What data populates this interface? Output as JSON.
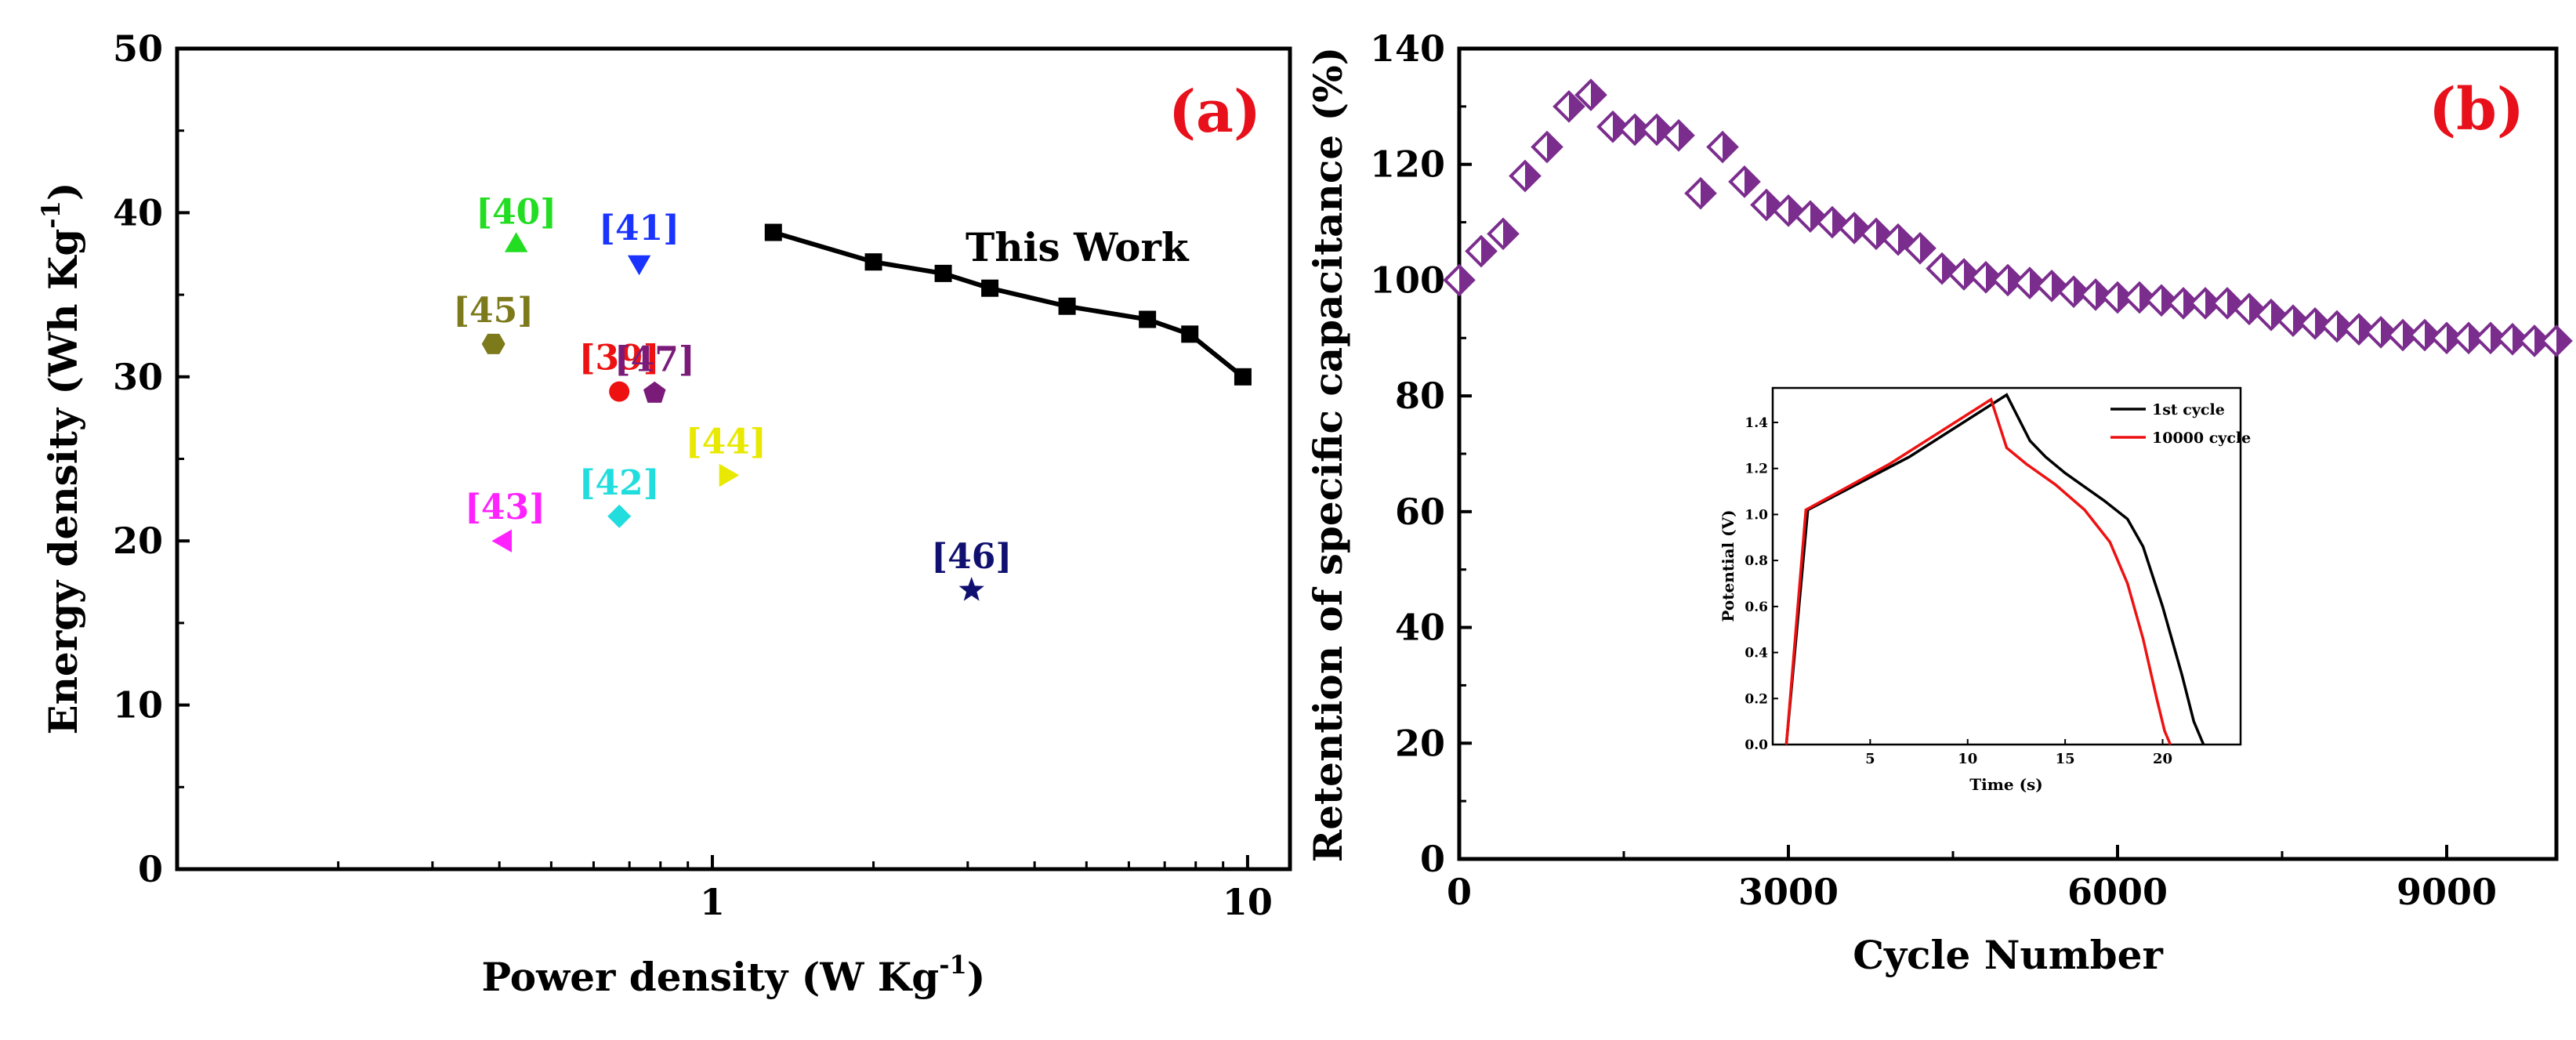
{
  "chart_data": [
    {
      "type": "scatter",
      "panel_label": "(a)",
      "xlabel_main": "Power density (W Kg",
      "xlabel_sup": "-1",
      "xlabel_tail": ")",
      "ylabel_main": "Energy density (Wh Kg",
      "ylabel_sup": "-1",
      "ylabel_tail": ")",
      "x_scale": "log",
      "xlim": [
        0.1,
        12
      ],
      "ylim": [
        0,
        50
      ],
      "x_ticks": [
        {
          "value": 1,
          "label": "1"
        },
        {
          "value": 10,
          "label": "10"
        }
      ],
      "y_ticks": [
        0,
        10,
        20,
        30,
        40,
        50
      ],
      "this_work": {
        "label": "This Work",
        "color": "#000000",
        "x": [
          1.3,
          2.0,
          2.7,
          3.3,
          4.6,
          6.5,
          7.8,
          9.8
        ],
        "y": [
          38.8,
          37.0,
          36.3,
          35.4,
          34.3,
          33.5,
          32.6,
          30.0
        ]
      },
      "references": [
        {
          "label": "[40]",
          "x": 0.43,
          "y": 38.0,
          "marker": "triangle-up",
          "color": "#22dd22"
        },
        {
          "label": "[41]",
          "x": 0.73,
          "y": 37.0,
          "marker": "triangle-down",
          "color": "#1a33ff"
        },
        {
          "label": "[45]",
          "x": 0.39,
          "y": 32.0,
          "marker": "hexagon",
          "color": "#7d7a1c"
        },
        {
          "label": "[39]",
          "x": 0.67,
          "y": 29.1,
          "marker": "circle",
          "color": "#ee1111"
        },
        {
          "label": "[47]",
          "x": 0.78,
          "y": 29.0,
          "marker": "pentagon",
          "color": "#7a1b7a"
        },
        {
          "label": "[44]",
          "x": 1.06,
          "y": 24.0,
          "marker": "triangle-right",
          "color": "#e8e800"
        },
        {
          "label": "[42]",
          "x": 0.67,
          "y": 21.5,
          "marker": "diamond",
          "color": "#22dddd"
        },
        {
          "label": "[43]",
          "x": 0.41,
          "y": 20.0,
          "marker": "triangle-left",
          "color": "#ff22ff"
        },
        {
          "label": "[46]",
          "x": 3.05,
          "y": 17.0,
          "marker": "star",
          "color": "#101070"
        }
      ]
    },
    {
      "type": "scatter",
      "panel_label": "(b)",
      "xlabel": "Cycle Number",
      "ylabel": "Retention of specific capacitance (%)",
      "xlim": [
        0,
        10000
      ],
      "ylim": [
        0,
        140
      ],
      "x_ticks": [
        0,
        3000,
        6000,
        9000
      ],
      "y_ticks": [
        0,
        20,
        40,
        60,
        80,
        100,
        120,
        140
      ],
      "marker_color": "#7b2d8e",
      "series": {
        "x": [
          0,
          200,
          400,
          600,
          800,
          1000,
          1200,
          1400,
          1600,
          1800,
          2000,
          2200,
          2400,
          2600,
          2800,
          3000,
          3200,
          3400,
          3600,
          3800,
          4000,
          4200,
          4400,
          4600,
          4800,
          5000,
          5200,
          5400,
          5600,
          5800,
          6000,
          6200,
          6400,
          6600,
          6800,
          7000,
          7200,
          7400,
          7600,
          7800,
          8000,
          8200,
          8400,
          8600,
          8800,
          9000,
          9200,
          9400,
          9600,
          9800,
          10000
        ],
        "y": [
          100,
          105,
          108,
          118,
          123,
          130,
          132,
          126.5,
          126,
          126,
          125,
          115,
          123,
          117,
          113,
          112,
          111,
          110,
          109,
          108,
          107,
          105.5,
          102,
          101,
          100.5,
          100,
          99.5,
          99,
          98,
          97.5,
          97,
          97,
          96.5,
          96,
          96,
          96,
          95,
          94,
          93,
          92.5,
          92,
          91.5,
          91,
          90.5,
          90.5,
          90,
          90,
          90,
          89.8,
          89.5,
          89.5
        ]
      },
      "inset": {
        "xlabel": "Time (s)",
        "ylabel": "Potential (V)",
        "xlim": [
          0,
          24
        ],
        "ylim": [
          0,
          1.55
        ],
        "x_ticks": [
          5,
          10,
          15,
          20
        ],
        "y_ticks": [
          "0.0",
          "0.2",
          "0.4",
          "0.6",
          "0.8",
          "1.0",
          "1.2",
          "1.4"
        ],
        "series": [
          {
            "name": "1st cycle",
            "color": "#000000",
            "x": [
              0.7,
              1.8,
              7,
              12,
              13.2,
              14,
              15,
              17,
              18.2,
              19,
              20,
              21,
              21.6,
              22.1
            ],
            "y": [
              0,
              1.02,
              1.25,
              1.52,
              1.32,
              1.25,
              1.18,
              1.06,
              0.98,
              0.86,
              0.6,
              0.3,
              0.1,
              0
            ]
          },
          {
            "name": "10000 cycle",
            "color": "#ee1111",
            "x": [
              0.7,
              1.7,
              6,
              11.2,
              12,
              13,
              14.5,
              16,
              17.3,
              18.2,
              19,
              19.7,
              20.1,
              20.4
            ],
            "y": [
              0,
              1.02,
              1.22,
              1.5,
              1.29,
              1.22,
              1.13,
              1.02,
              0.88,
              0.7,
              0.46,
              0.2,
              0.06,
              0
            ]
          }
        ]
      }
    }
  ]
}
